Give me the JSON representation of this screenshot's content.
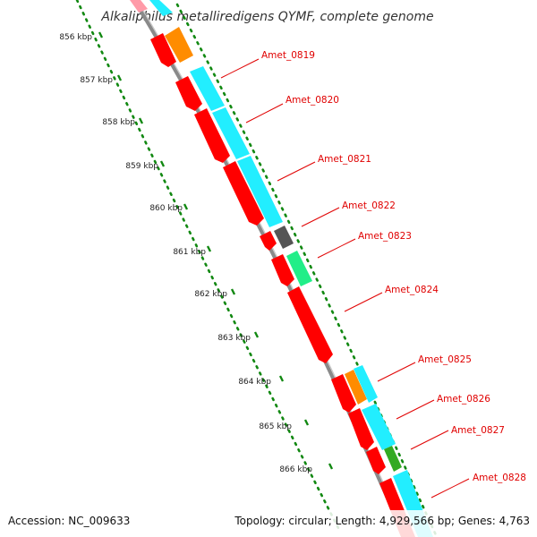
{
  "title": "Alkaliphilus metalliredigens QYMF, complete genome",
  "accession": "Accession: NC_009633",
  "summary": "Topology: circular; Length: 4,929,566 bp; Genes: 4,763",
  "kbp_ticks": [
    {
      "label": "856 kbp"
    },
    {
      "label": "857 kbp"
    },
    {
      "label": "858 kbp"
    },
    {
      "label": "859 kbp"
    },
    {
      "label": "860 kbp"
    },
    {
      "label": "861 kbp"
    },
    {
      "label": "862 kbp"
    },
    {
      "label": "863 kbp"
    },
    {
      "label": "864 kbp"
    },
    {
      "label": "865 kbp"
    },
    {
      "label": "866 kbp"
    }
  ],
  "gene_labels": [
    {
      "label": "Amet_0819"
    },
    {
      "label": "Amet_0820"
    },
    {
      "label": "Amet_0821"
    },
    {
      "label": "Amet_0822"
    },
    {
      "label": "Amet_0823"
    },
    {
      "label": "Amet_0824"
    },
    {
      "label": "Amet_0825"
    },
    {
      "label": "Amet_0826"
    },
    {
      "label": "Amet_0827"
    },
    {
      "label": "Amet_0828"
    }
  ],
  "colors": {
    "gene": "#ff0000",
    "cyan": "#22eeff",
    "orange": "#ff8c00",
    "gray_block": "#555555",
    "mint": "#22ee88",
    "green_block": "#33aa22",
    "backbone": "#8a8a8a",
    "dots": "#118811",
    "label": "#e00000"
  }
}
